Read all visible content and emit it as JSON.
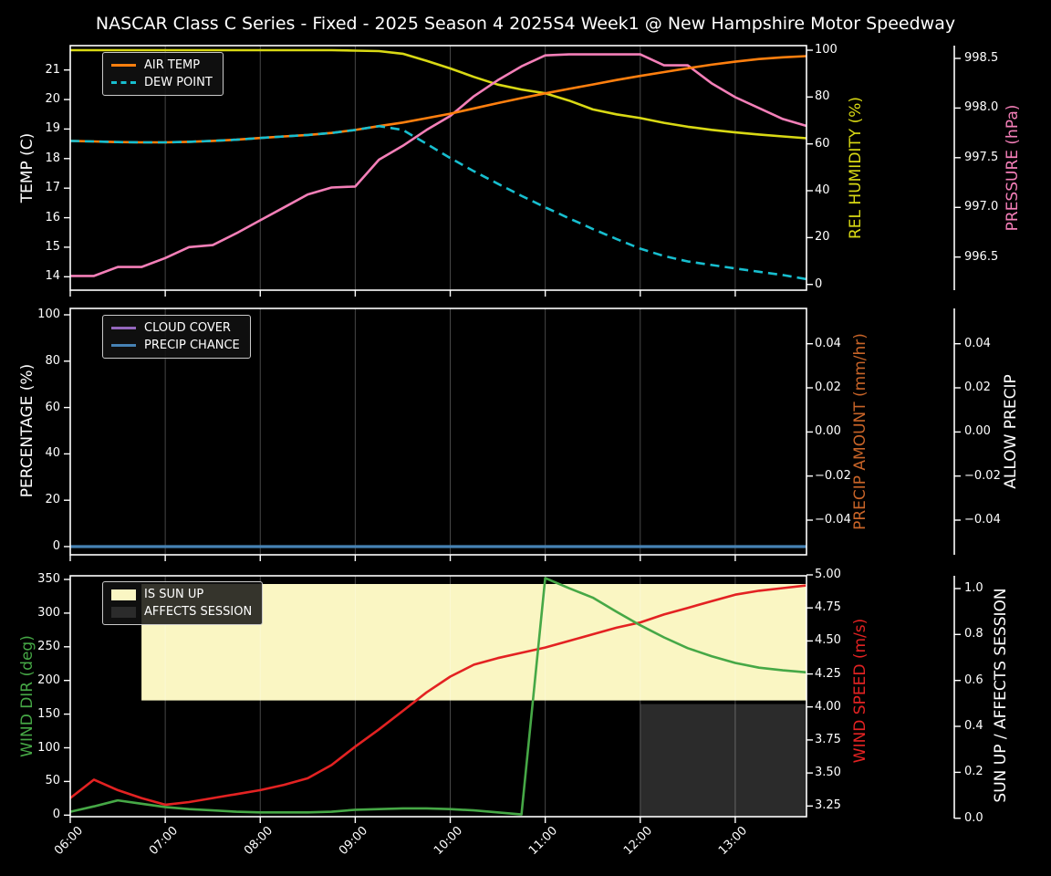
{
  "title": "NASCAR Class C Series - Fixed - 2025 Season 4 2025S4 Week1 @ New Hampshire Motor Speedway",
  "colors": {
    "background": "#000000",
    "foreground": "#ffffff",
    "grid": "rgba(255,255,255,0.28)",
    "air_temp": "#ff7f0e",
    "dew_point": "#17becf",
    "rel_humidity": "#d9d914",
    "pressure": "#f47fb8",
    "cloud_cover": "#9467bd",
    "precip_chance": "#4682b4",
    "precip_amount_label": "#c86428",
    "wind_dir": "#46a846",
    "wind_speed": "#e32222",
    "sun_up_fill": "#faf6c3",
    "affects_fill": "#2b2b2b"
  },
  "x_axis": {
    "tick_labels": [
      "06:00",
      "07:00",
      "08:00",
      "09:00",
      "10:00",
      "11:00",
      "12:00",
      "13:00"
    ],
    "tick_hours": [
      6,
      7,
      8,
      9,
      10,
      11,
      12,
      13
    ]
  },
  "chart_data": [
    {
      "type": "line",
      "x_hours": [
        6,
        6.25,
        6.5,
        6.75,
        7,
        7.25,
        7.5,
        7.75,
        8,
        8.25,
        8.5,
        8.75,
        9,
        9.25,
        9.5,
        9.75,
        10,
        10.25,
        10.5,
        10.75,
        11,
        11.25,
        11.5,
        11.75,
        12,
        12.25,
        12.5,
        12.75,
        13,
        13.25,
        13.5,
        13.75
      ],
      "axes": {
        "temp": {
          "label": "TEMP (C)",
          "tick_values": [
            14,
            15,
            16,
            17,
            18,
            19,
            20,
            21
          ],
          "tick_labels": [
            "14",
            "15",
            "16",
            "17",
            "18",
            "19",
            "20",
            "21"
          ]
        },
        "rel_humidity": {
          "label": "REL HUMIDITY (%)",
          "tick_values": [
            0,
            20,
            40,
            60,
            80,
            100
          ],
          "tick_labels": [
            "0",
            "20",
            "40",
            "60",
            "80",
            "100"
          ]
        },
        "pressure": {
          "label": "PRESSURE (hPa)",
          "tick_values": [
            996.5,
            997.0,
            997.5,
            998.0,
            998.5
          ],
          "tick_labels": [
            "996.5",
            "997.0",
            "997.5",
            "998.0",
            "998.5"
          ]
        }
      },
      "series": [
        {
          "name": "REL HUMIDITY",
          "axis": "rel_humidity",
          "color": "rel_humidity",
          "style": "solid",
          "values": [
            100,
            100,
            100,
            100,
            100,
            100,
            100,
            100,
            100,
            100,
            100,
            100,
            99.8,
            99.6,
            98.5,
            95.5,
            92.2,
            88.6,
            85.3,
            83.2,
            81.6,
            78.5,
            74.7,
            72.6,
            71.0,
            69.0,
            67.3,
            66.0,
            64.9,
            64.0,
            63.2,
            62.4
          ]
        },
        {
          "name": "PRESSURE",
          "axis": "pressure",
          "color": "pressure",
          "style": "solid",
          "values": [
            996.31,
            996.31,
            996.4,
            996.4,
            996.49,
            996.6,
            996.62,
            996.74,
            996.87,
            997.0,
            997.13,
            997.2,
            997.21,
            997.48,
            997.62,
            997.78,
            997.92,
            998.12,
            998.28,
            998.42,
            998.53,
            998.54,
            998.54,
            998.54,
            998.54,
            998.43,
            998.43,
            998.25,
            998.11,
            998.0,
            997.89,
            997.82
          ]
        },
        {
          "name": "AIR TEMP",
          "axis": "temp",
          "color": "air_temp",
          "style": "solid",
          "values": [
            18.6,
            18.58,
            18.56,
            18.55,
            18.55,
            18.57,
            18.6,
            18.64,
            18.7,
            18.75,
            18.8,
            18.87,
            18.97,
            19.1,
            19.22,
            19.37,
            19.52,
            19.7,
            19.88,
            20.05,
            20.21,
            20.36,
            20.51,
            20.66,
            20.8,
            20.93,
            21.06,
            21.18,
            21.28,
            21.37,
            21.43,
            21.47
          ]
        },
        {
          "name": "DEW POINT",
          "axis": "temp",
          "color": "dew_point",
          "style": "dashed",
          "values": [
            18.6,
            18.58,
            18.56,
            18.55,
            18.55,
            18.57,
            18.6,
            18.64,
            18.7,
            18.75,
            18.8,
            18.87,
            18.97,
            19.1,
            18.97,
            18.5,
            18.02,
            17.57,
            17.15,
            16.74,
            16.35,
            15.98,
            15.62,
            15.28,
            14.95,
            14.7,
            14.52,
            14.4,
            14.28,
            14.17,
            14.06,
            13.92
          ]
        }
      ],
      "legend": [
        {
          "label": "AIR TEMP",
          "swatch": "line",
          "color": "air_temp"
        },
        {
          "label": "DEW POINT",
          "swatch": "dash",
          "color": "dew_point"
        }
      ]
    },
    {
      "type": "line",
      "x_hours": [
        6,
        6.25,
        6.5,
        6.75,
        7,
        7.25,
        7.5,
        7.75,
        8,
        8.25,
        8.5,
        8.75,
        9,
        9.25,
        9.5,
        9.75,
        10,
        10.25,
        10.5,
        10.75,
        11,
        11.25,
        11.5,
        11.75,
        12,
        12.25,
        12.5,
        12.75,
        13,
        13.25,
        13.5,
        13.75
      ],
      "axes": {
        "percentage": {
          "label": "PERCENTAGE (%)",
          "tick_values": [
            0,
            20,
            40,
            60,
            80,
            100
          ],
          "tick_labels": [
            "0",
            "20",
            "40",
            "60",
            "80",
            "100"
          ]
        },
        "precip_amount": {
          "label": "PRECIP AMOUNT (mm/hr)",
          "tick_values": [
            -0.04,
            -0.02,
            0,
            0.02,
            0.04
          ],
          "tick_labels": [
            "−0.04",
            "−0.02",
            "0.00",
            "0.02",
            "0.04"
          ]
        },
        "allow_precip": {
          "label": "ALLOW PRECIP",
          "tick_values": [
            -0.04,
            -0.02,
            0,
            0.02,
            0.04
          ],
          "tick_labels": [
            "−0.04",
            "−0.02",
            "0.00",
            "0.02",
            "0.04"
          ]
        }
      },
      "series": [
        {
          "name": "CLOUD COVER",
          "axis": "percentage",
          "color": "cloud_cover",
          "style": "solid",
          "values": [
            0,
            0,
            0,
            0,
            0,
            0,
            0,
            0,
            0,
            0,
            0,
            0,
            0,
            0,
            0,
            0,
            0,
            0,
            0,
            0,
            0,
            0,
            0,
            0,
            0,
            0,
            0,
            0,
            0,
            0,
            0,
            0
          ]
        },
        {
          "name": "PRECIP CHANCE",
          "axis": "percentage",
          "color": "precip_chance",
          "style": "solid",
          "width": 3.2,
          "values": [
            0,
            0,
            0,
            0,
            0,
            0,
            0,
            0,
            0,
            0,
            0,
            0,
            0,
            0,
            0,
            0,
            0,
            0,
            0,
            0,
            0,
            0,
            0,
            0,
            0,
            0,
            0,
            0,
            0,
            0,
            0,
            0
          ]
        }
      ],
      "legend": [
        {
          "label": "CLOUD COVER",
          "swatch": "line",
          "color": "cloud_cover"
        },
        {
          "label": "PRECIP CHANCE",
          "swatch": "line",
          "color": "precip_chance"
        }
      ]
    },
    {
      "type": "line",
      "x_hours": [
        6,
        6.25,
        6.5,
        6.75,
        7,
        7.25,
        7.5,
        7.75,
        8,
        8.25,
        8.5,
        8.75,
        9,
        9.25,
        9.5,
        9.75,
        10,
        10.25,
        10.5,
        10.75,
        11,
        11.25,
        11.5,
        11.75,
        12,
        12.25,
        12.5,
        12.75,
        13,
        13.25,
        13.5,
        13.75
      ],
      "axes": {
        "wind_dir": {
          "label": "WIND DIR (deg)",
          "tick_values": [
            0,
            50,
            100,
            150,
            200,
            250,
            300,
            350
          ],
          "tick_labels": [
            "0",
            "50",
            "100",
            "150",
            "200",
            "250",
            "300",
            "350"
          ]
        },
        "wind_speed": {
          "label": "WIND SPEED (m/s)",
          "tick_values": [
            3.25,
            3.5,
            3.75,
            4,
            4.25,
            4.5,
            4.75,
            5
          ],
          "tick_labels": [
            "3.25",
            "3.50",
            "3.75",
            "4.00",
            "4.25",
            "4.50",
            "4.75",
            "5.00"
          ]
        },
        "sun": {
          "label": "SUN UP / AFFECTS SESSION",
          "tick_values": [
            0,
            0.2,
            0.4,
            0.6,
            0.8,
            1
          ],
          "tick_labels": [
            "0.0",
            "0.2",
            "0.4",
            "0.6",
            "0.8",
            "1.0"
          ]
        }
      },
      "regions": [
        {
          "name": "IS SUN UP",
          "axis": "sun",
          "color": "sun_up_fill",
          "start_hour": 6.75,
          "end_hour": 13.75,
          "band": [
            0.513,
            1.02
          ]
        },
        {
          "name": "AFFECTS SESSION",
          "axis": "sun",
          "color": "affects_fill",
          "start_hour": 12.0,
          "end_hour": 13.75,
          "band": [
            0.005,
            0.497
          ]
        }
      ],
      "series": [
        {
          "name": "WIND SPEED",
          "axis": "wind_speed",
          "color": "wind_speed",
          "style": "solid",
          "values": [
            3.31,
            3.45,
            3.37,
            3.31,
            3.26,
            3.28,
            3.31,
            3.34,
            3.37,
            3.41,
            3.46,
            3.56,
            3.7,
            3.83,
            3.97,
            4.11,
            4.23,
            4.32,
            4.37,
            4.41,
            4.45,
            4.5,
            4.55,
            4.6,
            4.64,
            4.7,
            4.75,
            4.8,
            4.85,
            4.88,
            4.9,
            4.92
          ]
        },
        {
          "name": "WIND DIR",
          "axis": "wind_dir",
          "color": "wind_dir",
          "style": "solid",
          "values": [
            5,
            13,
            22,
            17,
            12,
            9,
            7,
            5,
            4,
            4,
            4,
            5,
            8,
            9,
            10,
            10,
            9,
            7,
            4,
            1,
            352,
            337,
            323,
            302,
            282,
            264,
            248,
            236,
            226,
            219,
            215,
            212
          ]
        }
      ],
      "legend": [
        {
          "label": "IS SUN UP",
          "swatch": "patch",
          "color": "sun_up_fill"
        },
        {
          "label": "AFFECTS SESSION",
          "swatch": "patch",
          "color": "affects_fill"
        }
      ]
    }
  ]
}
